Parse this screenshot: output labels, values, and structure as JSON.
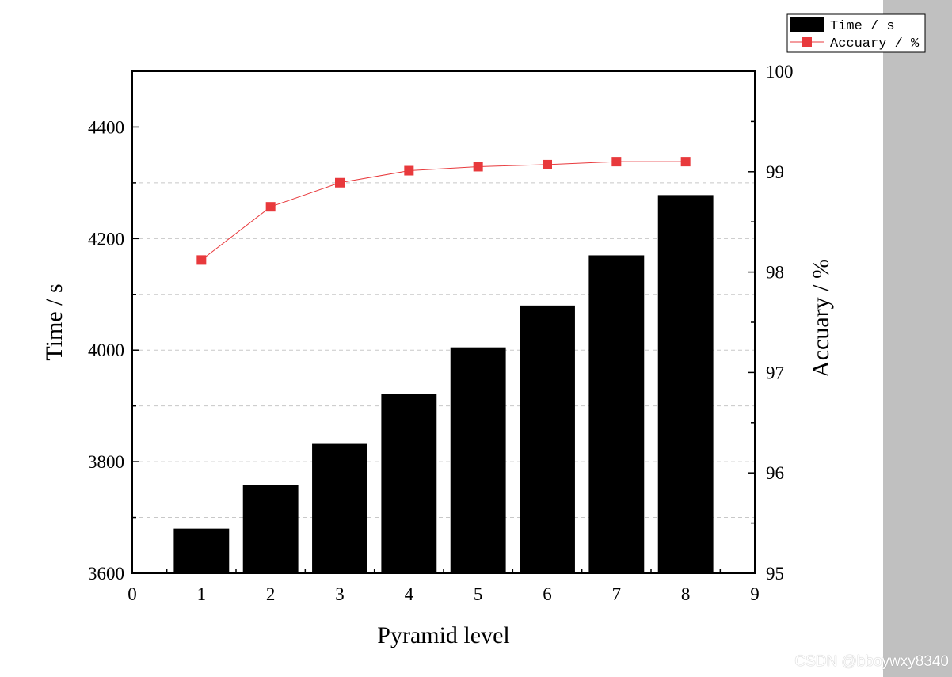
{
  "chart_data": {
    "type": "bar",
    "x": [
      1,
      2,
      3,
      4,
      5,
      6,
      7,
      8
    ],
    "xlabel": "Pyramid level",
    "xlim": [
      0,
      9
    ],
    "xticks": [
      0,
      1,
      2,
      3,
      4,
      5,
      6,
      7,
      8,
      9
    ],
    "series": [
      {
        "name": "Time / s",
        "type": "bar",
        "axis": "left",
        "color": "#000000",
        "values": [
          3680,
          3758,
          3832,
          3922,
          4005,
          4080,
          4170,
          4278
        ]
      },
      {
        "name": "Accuary / %",
        "type": "line",
        "axis": "right",
        "color": "#e8393c",
        "marker": "square",
        "values": [
          98.12,
          98.65,
          98.89,
          99.01,
          99.05,
          99.07,
          99.1,
          99.1
        ]
      }
    ],
    "y_left": {
      "label": "Time / s",
      "ylim": [
        3600,
        4500
      ],
      "ticks": [
        3600,
        3800,
        4000,
        4200,
        4400
      ]
    },
    "y_right": {
      "label": "Accuary / %",
      "ylim": [
        95,
        100
      ],
      "ticks": [
        95,
        96,
        97,
        98,
        99,
        100
      ]
    },
    "grid": "horizontal dashed",
    "legend_position": "top-right, outside plot",
    "watermark": "CSDN @bboywxy8340"
  }
}
